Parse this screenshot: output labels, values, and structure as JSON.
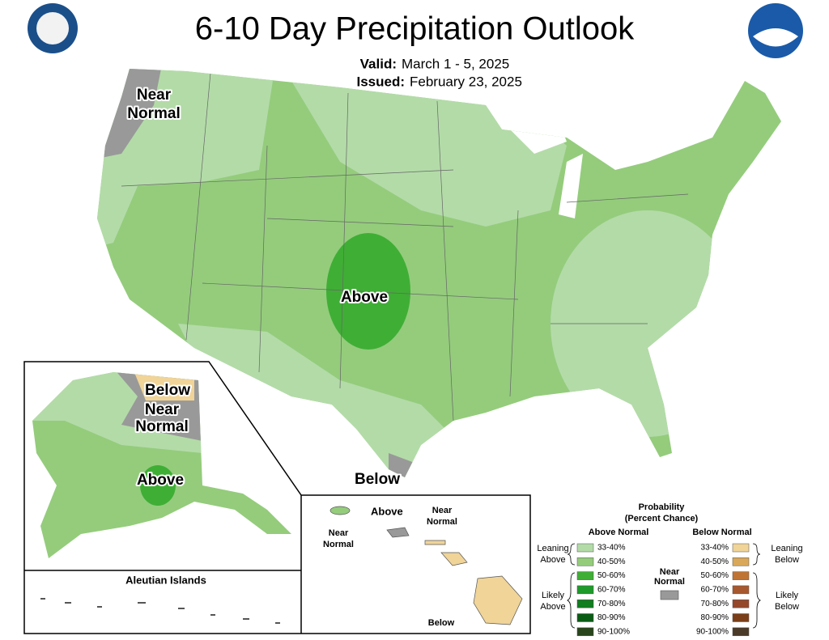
{
  "header": {
    "title": "6-10 Day Precipitation Outlook",
    "valid_label": "Valid:",
    "valid": "March 1 - 5, 2025",
    "issued_label": "Issued:",
    "issued": "February 23, 2025"
  },
  "conus": {
    "labels": [
      {
        "lines": [
          "Near",
          "Normal"
        ]
      },
      {
        "lines": [
          "Above"
        ]
      },
      {
        "lines": [
          "Below"
        ]
      }
    ]
  },
  "alaska": {
    "labels": [
      {
        "lines": [
          "Below"
        ]
      },
      {
        "lines": [
          "Near",
          "Normal"
        ]
      },
      {
        "lines": [
          "Above"
        ]
      }
    ]
  },
  "aleutians": {
    "title": "Aleutian Islands"
  },
  "hawaii": {
    "labels": [
      {
        "lines": [
          "Above"
        ]
      },
      {
        "lines": [
          "Near",
          "Normal"
        ]
      },
      {
        "lines": [
          "Near",
          "Normal"
        ]
      },
      {
        "lines": [
          "Below"
        ]
      }
    ]
  },
  "legend": {
    "title": [
      "Probability",
      "(Percent Chance)"
    ],
    "above_header": "Above Normal",
    "below_header": "Below Normal",
    "near_normal": {
      "lines": [
        "Near",
        "Normal"
      ],
      "color": "#999999"
    },
    "above": [
      {
        "label": "33-40%",
        "color": "#b3dba8"
      },
      {
        "label": "40-50%",
        "color": "#94cc7c"
      },
      {
        "label": "50-60%",
        "color": "#3fae35"
      },
      {
        "label": "60-70%",
        "color": "#1e9a2a"
      },
      {
        "label": "70-80%",
        "color": "#107d1e"
      },
      {
        "label": "80-90%",
        "color": "#0a5c14"
      },
      {
        "label": "90-100%",
        "color": "#28451c"
      }
    ],
    "below": [
      {
        "label": "33-40%",
        "color": "#f0d498"
      },
      {
        "label": "40-50%",
        "color": "#d9a85a"
      },
      {
        "label": "50-60%",
        "color": "#bf7434"
      },
      {
        "label": "60-70%",
        "color": "#a8582e"
      },
      {
        "label": "70-80%",
        "color": "#95472a"
      },
      {
        "label": "80-90%",
        "color": "#7b3e18"
      },
      {
        "label": "90-100%",
        "color": "#4b3a28"
      }
    ],
    "groups": {
      "leaning_above": [
        "Leaning",
        "Above"
      ],
      "likely_above": [
        "Likely",
        "Above"
      ],
      "leaning_below": [
        "Leaning",
        "Below"
      ],
      "likely_below": [
        "Likely",
        "Below"
      ]
    }
  }
}
